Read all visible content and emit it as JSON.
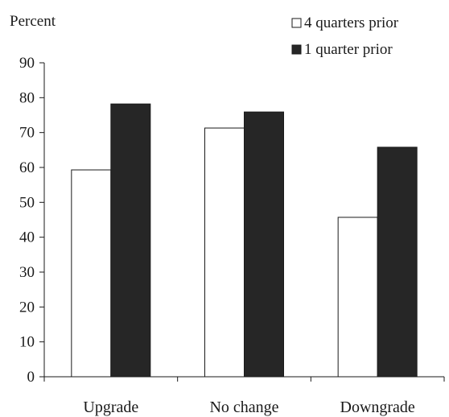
{
  "chart_data": {
    "type": "bar",
    "ylabel": "Percent",
    "xlabel": "",
    "title": "",
    "categories": [
      "Upgrade",
      "No change",
      "Downgrade"
    ],
    "series": [
      {
        "name": "4 quarters prior",
        "values": [
          59.3,
          71.3,
          45.7
        ],
        "color": "#ffffff"
      },
      {
        "name": "1 quarter prior",
        "values": [
          78.2,
          75.9,
          65.8
        ],
        "color": "#262626"
      }
    ],
    "ylim": [
      0,
      90
    ],
    "yticks": [
      0,
      10,
      20,
      30,
      40,
      50,
      60,
      70,
      80,
      90
    ],
    "grid": false,
    "legend_position": "top-right"
  }
}
